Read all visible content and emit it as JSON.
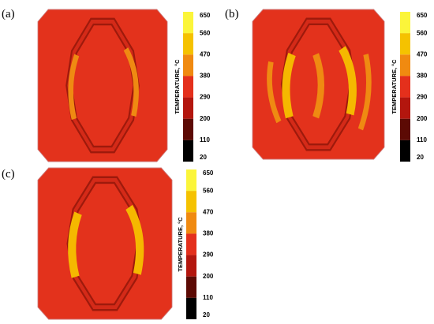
{
  "panels": [
    {
      "label": "(a)",
      "colorbar": {
        "title": "TEMPERATURE, °C",
        "ticks": [
          "650",
          "560",
          "470",
          "380",
          "290",
          "200",
          "110",
          "20"
        ]
      }
    },
    {
      "label": "(b)",
      "colorbar": {
        "title": "TEMPERATURE, °C",
        "ticks": [
          "650",
          "560",
          "470",
          "380",
          "290",
          "200",
          "110",
          "20"
        ]
      }
    },
    {
      "label": "(c)",
      "colorbar": {
        "title": "TEMPERATURE, °C",
        "ticks": [
          "650",
          "560",
          "470",
          "380",
          "290",
          "200",
          "110",
          "20"
        ]
      }
    }
  ],
  "colorbar_colors": [
    "#fbf53a",
    "#f5c200",
    "#f08a10",
    "#e4301c",
    "#b3160e",
    "#5c0a04",
    "#000000"
  ]
}
